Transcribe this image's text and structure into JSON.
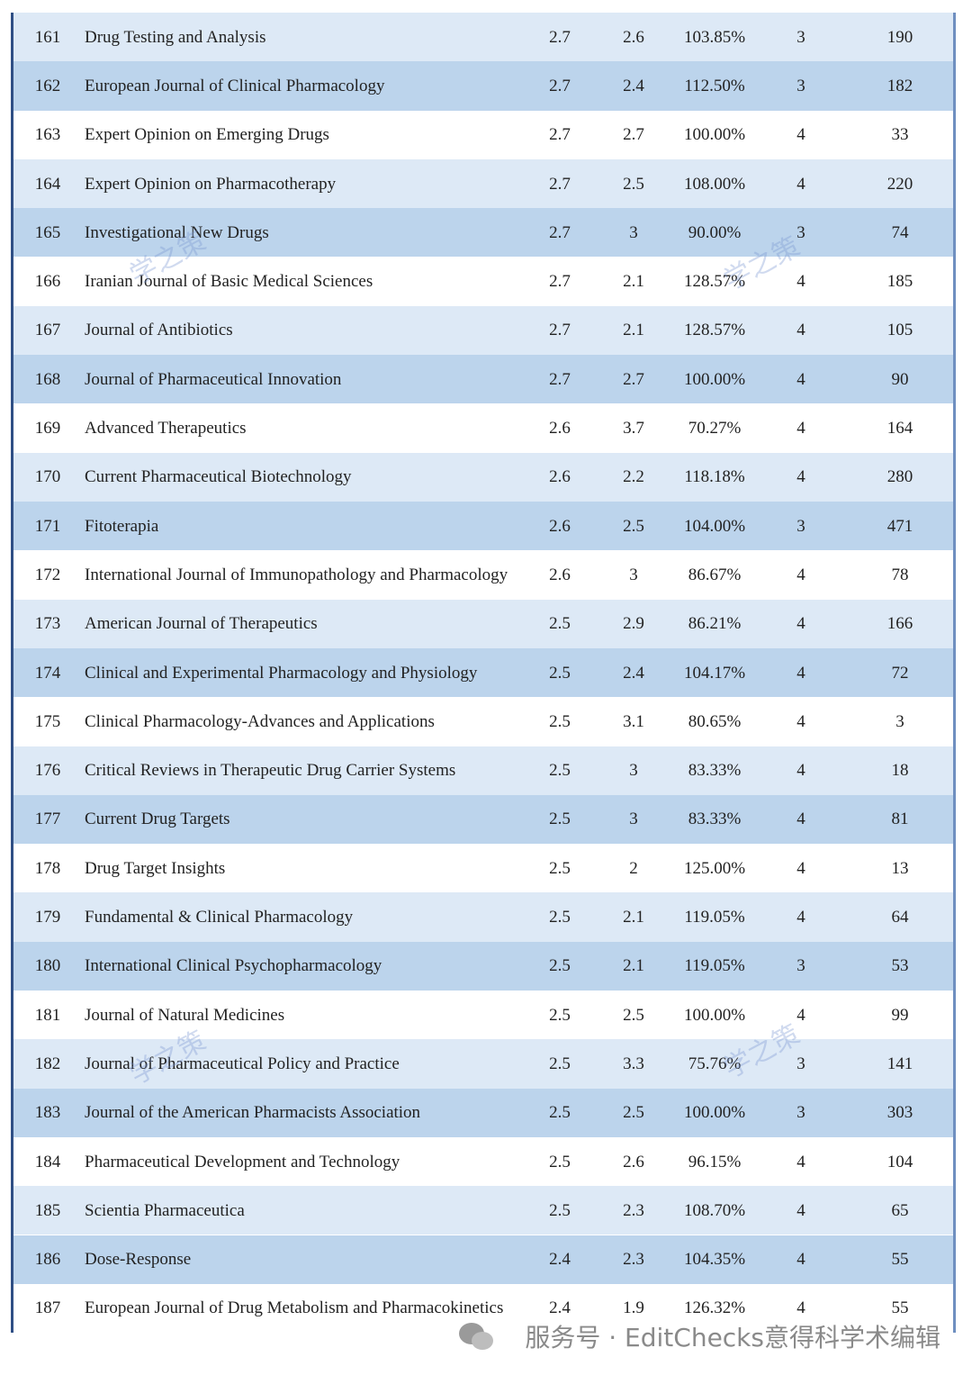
{
  "table": {
    "rows": [
      [
        "161",
        "Drug Testing and Analysis",
        "2.7",
        "2.6",
        "103.85%",
        "3",
        "190"
      ],
      [
        "162",
        "European Journal of Clinical Pharmacology",
        "2.7",
        "2.4",
        "112.50%",
        "3",
        "182"
      ],
      [
        "163",
        "Expert Opinion on Emerging Drugs",
        "2.7",
        "2.7",
        "100.00%",
        "4",
        "33"
      ],
      [
        "164",
        "Expert Opinion on Pharmacotherapy",
        "2.7",
        "2.5",
        "108.00%",
        "4",
        "220"
      ],
      [
        "165",
        "Investigational New Drugs",
        "2.7",
        "3",
        "90.00%",
        "3",
        "74"
      ],
      [
        "166",
        "Iranian Journal of Basic Medical Sciences",
        "2.7",
        "2.1",
        "128.57%",
        "4",
        "185"
      ],
      [
        "167",
        "Journal of Antibiotics",
        "2.7",
        "2.1",
        "128.57%",
        "4",
        "105"
      ],
      [
        "168",
        "Journal of Pharmaceutical Innovation",
        "2.7",
        "2.7",
        "100.00%",
        "4",
        "90"
      ],
      [
        "169",
        "Advanced Therapeutics",
        "2.6",
        "3.7",
        "70.27%",
        "4",
        "164"
      ],
      [
        "170",
        "Current Pharmaceutical Biotechnology",
        "2.6",
        "2.2",
        "118.18%",
        "4",
        "280"
      ],
      [
        "171",
        "Fitoterapia",
        "2.6",
        "2.5",
        "104.00%",
        "3",
        "471"
      ],
      [
        "172",
        "International Journal of Immunopathology and Pharmacology",
        "2.6",
        "3",
        "86.67%",
        "4",
        "78"
      ],
      [
        "173",
        "American Journal of Therapeutics",
        "2.5",
        "2.9",
        "86.21%",
        "4",
        "166"
      ],
      [
        "174",
        "Clinical and Experimental Pharmacology and Physiology",
        "2.5",
        "2.4",
        "104.17%",
        "4",
        "72"
      ],
      [
        "175",
        "Clinical Pharmacology-Advances and Applications",
        "2.5",
        "3.1",
        "80.65%",
        "4",
        "3"
      ],
      [
        "176",
        "Critical Reviews in Therapeutic Drug Carrier Systems",
        "2.5",
        "3",
        "83.33%",
        "4",
        "18"
      ],
      [
        "177",
        "Current Drug Targets",
        "2.5",
        "3",
        "83.33%",
        "4",
        "81"
      ],
      [
        "178",
        "Drug Target Insights",
        "2.5",
        "2",
        "125.00%",
        "4",
        "13"
      ],
      [
        "179",
        "Fundamental & Clinical Pharmacology",
        "2.5",
        "2.1",
        "119.05%",
        "4",
        "64"
      ],
      [
        "180",
        "International Clinical Psychopharmacology",
        "2.5",
        "2.1",
        "119.05%",
        "3",
        "53"
      ],
      [
        "181",
        "Journal of Natural Medicines",
        "2.5",
        "2.5",
        "100.00%",
        "4",
        "99"
      ],
      [
        "182",
        "Journal of Pharmaceutical Policy and Practice",
        "2.5",
        "3.3",
        "75.76%",
        "3",
        "141"
      ],
      [
        "183",
        "Journal of the American Pharmacists Association",
        "2.5",
        "2.5",
        "100.00%",
        "3",
        "303"
      ],
      [
        "184",
        "Pharmaceutical Development and Technology",
        "2.5",
        "2.6",
        "96.15%",
        "4",
        "104"
      ],
      [
        "185",
        "Scientia Pharmaceutica",
        "2.5",
        "2.3",
        "108.70%",
        "4",
        "65"
      ],
      [
        "186",
        "Dose-Response",
        "2.4",
        "2.3",
        "104.35%",
        "4",
        "55"
      ],
      [
        "187",
        "European Journal of Drug Metabolism and Pharmacokinetics",
        "2.4",
        "1.9",
        "126.32%",
        "4",
        "55"
      ]
    ]
  },
  "watermark": "学之策",
  "footer": "服务号 · EditChecks意得科学术编辑"
}
